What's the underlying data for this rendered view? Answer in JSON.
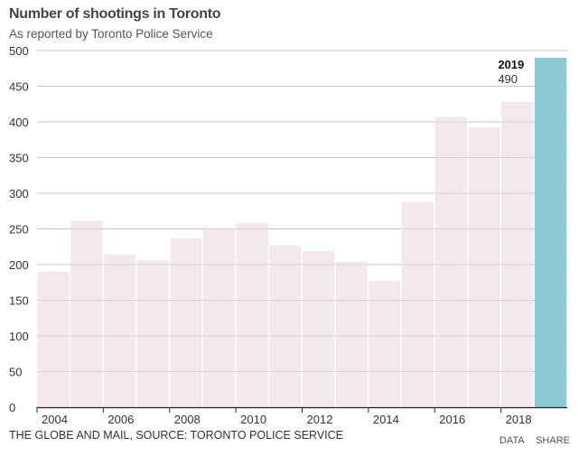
{
  "chart_data": {
    "type": "bar",
    "title": "Number of shootings in Toronto",
    "subtitle": "As reported by Toronto Police Service",
    "xlabel": "",
    "ylabel": "",
    "ylim": [
      0,
      500
    ],
    "yticks": [
      0,
      50,
      100,
      150,
      200,
      250,
      300,
      350,
      400,
      450,
      500
    ],
    "xtick_labels": [
      "2004",
      "2006",
      "2008",
      "2010",
      "2012",
      "2014",
      "2016",
      "2018"
    ],
    "grid": true,
    "categories": [
      "2004",
      "2005",
      "2006",
      "2007",
      "2008",
      "2009",
      "2010",
      "2011",
      "2012",
      "2013",
      "2014",
      "2015",
      "2016",
      "2017",
      "2018",
      "2019"
    ],
    "values": [
      190,
      261,
      214,
      206,
      237,
      251,
      258,
      227,
      219,
      204,
      177,
      288,
      407,
      392,
      428,
      490
    ],
    "highlight": {
      "category": "2019",
      "value": 490,
      "label_year": "2019",
      "label_value": "490"
    },
    "colors": {
      "bar": "#f2e8ee",
      "highlight": "#8ccbd4",
      "grid": "#c8c4c6",
      "axis": "#222222"
    }
  },
  "footer": {
    "source": "THE GLOBE AND MAIL, SOURCE: TORONTO POLICE SERVICE",
    "data_link": "DATA",
    "share_link": "SHARE"
  }
}
